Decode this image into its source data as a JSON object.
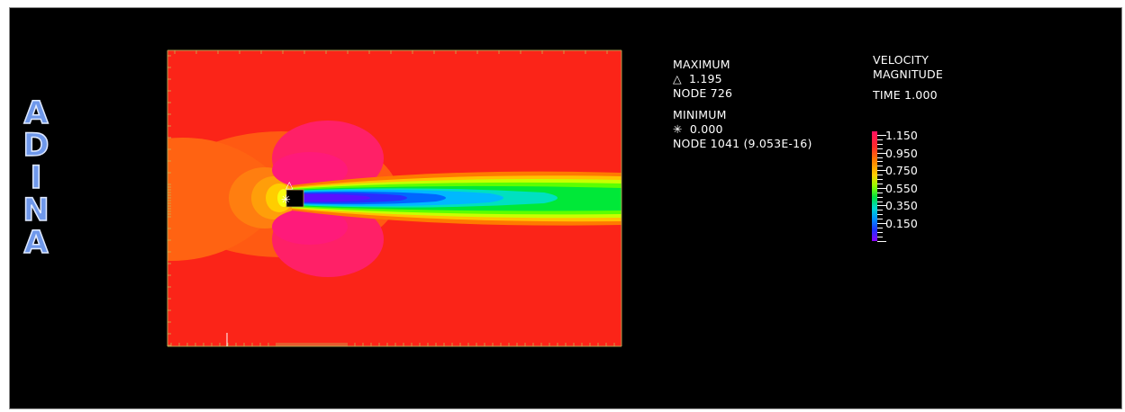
{
  "logo": {
    "letters": [
      "A",
      "D",
      "I",
      "N",
      "A"
    ]
  },
  "max_block": {
    "heading": "MAXIMUM",
    "symbol": "△",
    "value": "1.195",
    "node": "NODE 726"
  },
  "min_block": {
    "heading": "MINIMUM",
    "symbol": "✳",
    "value": "0.000",
    "node": "NODE 1041 (9.053E-16)"
  },
  "field": {
    "title_line1": "VELOCITY",
    "title_line2": "MAGNITUDE",
    "time": "TIME 1.000"
  },
  "legend": {
    "labels": [
      "1.150",
      "0.950",
      "0.750",
      "0.550",
      "0.350",
      "0.150"
    ],
    "colors": [
      "#ff1060",
      "#ff2a2a",
      "#ff7a00",
      "#ffd000",
      "#90ff00",
      "#00e040",
      "#00d8d0",
      "#0090ff",
      "#2030ff",
      "#8a00ff"
    ]
  },
  "plot": {
    "quantity": "velocity magnitude",
    "max_marker": "△",
    "min_marker": "✳"
  }
}
